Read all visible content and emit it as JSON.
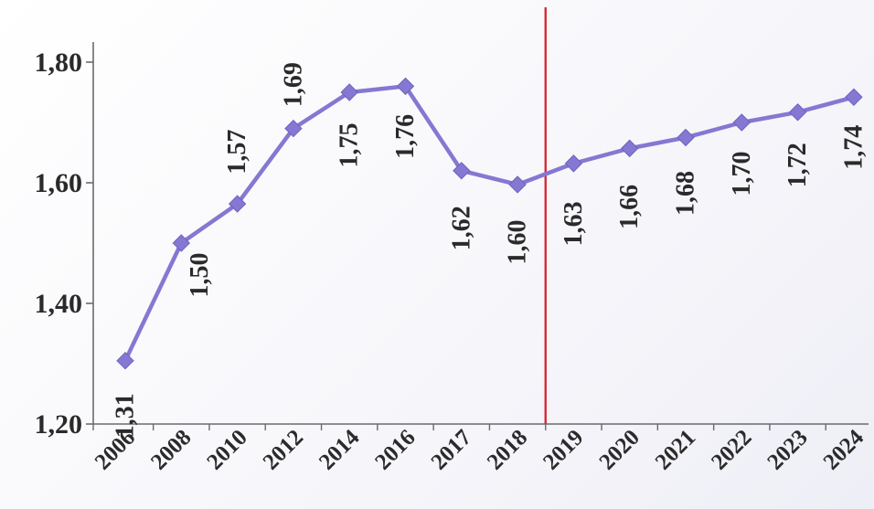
{
  "chart_data": {
    "type": "line",
    "categories": [
      "2006",
      "2008",
      "2010",
      "2012",
      "2014",
      "2016",
      "2017",
      "2018",
      "2019",
      "2020",
      "2021",
      "2022",
      "2023",
      "2024"
    ],
    "series": [
      {
        "values": [
          1.305,
          1.5,
          1.565,
          1.69,
          1.75,
          1.76,
          1.62,
          1.597,
          1.632,
          1.657,
          1.675,
          1.7,
          1.717,
          1.742
        ],
        "labels": [
          "1,31",
          "1,50",
          "1,57",
          "1,69",
          "1,75",
          "1,76",
          "1,62",
          "1,60",
          "1,63",
          "1,66",
          "1,68",
          "1,70",
          "1,72",
          "1,74"
        ]
      }
    ],
    "y_ticks": [
      {
        "value": 1.2,
        "label": "1,20"
      },
      {
        "value": 1.4,
        "label": "1,40"
      },
      {
        "value": 1.6,
        "label": "1,60"
      },
      {
        "value": 1.8,
        "label": "1,80"
      }
    ],
    "ylim": [
      1.2,
      1.85
    ],
    "grid": false,
    "line_color": "#8478d2",
    "marker_color": "#8478d2",
    "reference_line": {
      "between_categories": [
        "2018",
        "2019"
      ],
      "color": "#d42a35"
    }
  }
}
